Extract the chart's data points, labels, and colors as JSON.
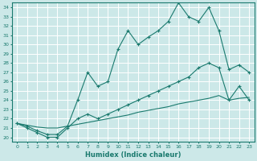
{
  "xlabel": "Humidex (Indice chaleur)",
  "bg_color": "#cce8e8",
  "line_color": "#1a7a6e",
  "grid_color": "#ffffff",
  "xlim": [
    -0.5,
    23.5
  ],
  "ylim": [
    19.5,
    34.5
  ],
  "yticks": [
    20,
    21,
    22,
    23,
    24,
    25,
    26,
    27,
    28,
    29,
    30,
    31,
    32,
    33,
    34
  ],
  "xticks": [
    0,
    1,
    2,
    3,
    4,
    5,
    6,
    7,
    8,
    9,
    10,
    11,
    12,
    13,
    14,
    15,
    16,
    17,
    18,
    19,
    20,
    21,
    22,
    23
  ],
  "line1_x": [
    0,
    1,
    2,
    3,
    4,
    5,
    6,
    7,
    8,
    9,
    10,
    11,
    12,
    13,
    14,
    15,
    16,
    17,
    18,
    19,
    20,
    21,
    22,
    23
  ],
  "line1_y": [
    21.5,
    21.2,
    20.7,
    20.3,
    20.3,
    21.2,
    24.0,
    27.0,
    25.5,
    26.0,
    29.5,
    31.5,
    30.0,
    30.8,
    31.5,
    32.5,
    34.5,
    33.0,
    32.5,
    34.0,
    31.5,
    27.3,
    27.8,
    27.0
  ],
  "line2_x": [
    0,
    1,
    2,
    3,
    4,
    5,
    6,
    7,
    8,
    9,
    10,
    11,
    12,
    13,
    14,
    15,
    16,
    17,
    18,
    19,
    20,
    21,
    22,
    23
  ],
  "line2_y": [
    21.5,
    21.0,
    20.5,
    20.0,
    20.0,
    21.0,
    22.0,
    22.5,
    22.0,
    22.5,
    23.0,
    23.5,
    24.0,
    24.5,
    25.0,
    25.5,
    26.0,
    26.5,
    27.5,
    28.0,
    27.5,
    24.0,
    25.5,
    24.0
  ],
  "line3_x": [
    0,
    1,
    2,
    3,
    4,
    5,
    6,
    7,
    8,
    9,
    10,
    11,
    12,
    13,
    14,
    15,
    16,
    17,
    18,
    19,
    20,
    21,
    22,
    23
  ],
  "line3_y": [
    21.5,
    21.3,
    21.1,
    21.0,
    21.0,
    21.2,
    21.4,
    21.6,
    21.8,
    22.0,
    22.2,
    22.4,
    22.7,
    22.9,
    23.1,
    23.3,
    23.6,
    23.8,
    24.0,
    24.2,
    24.5,
    24.0,
    24.2,
    24.3
  ]
}
